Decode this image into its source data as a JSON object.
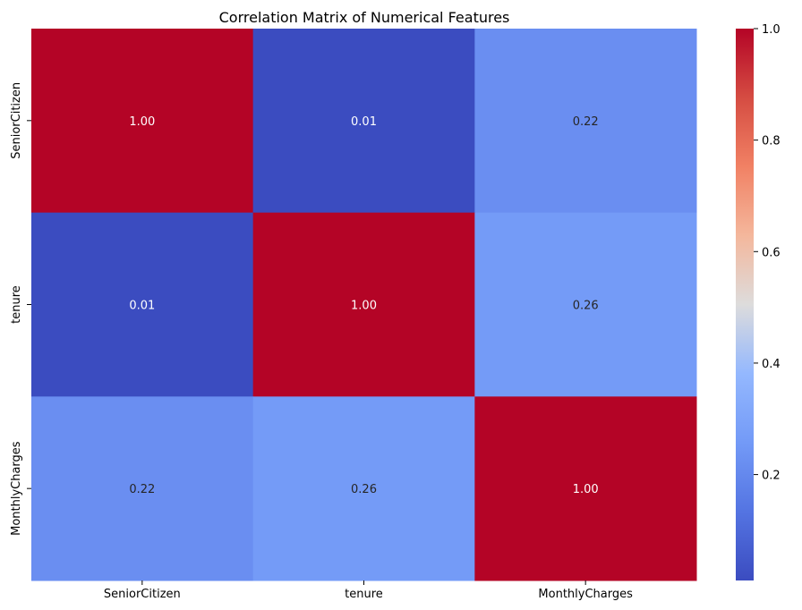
{
  "chart_data": {
    "type": "heatmap",
    "title": "Correlation Matrix of Numerical Features",
    "x_labels": [
      "SeniorCitizen",
      "tenure",
      "MonthlyCharges"
    ],
    "y_labels": [
      "SeniorCitizen",
      "tenure",
      "MonthlyCharges"
    ],
    "values": [
      [
        1.0,
        0.01,
        0.22
      ],
      [
        0.01,
        1.0,
        0.26
      ],
      [
        0.22,
        0.26,
        1.0
      ]
    ],
    "annotations": [
      [
        "1.00",
        "0.01",
        "0.22"
      ],
      [
        "0.01",
        "1.00",
        "0.26"
      ],
      [
        "0.22",
        "0.26",
        "1.00"
      ]
    ],
    "colormap": "coolwarm",
    "colorbar": {
      "range": [
        0.01,
        1.0
      ],
      "ticks": [
        0.2,
        0.4,
        0.6,
        0.8,
        1.0
      ],
      "tick_labels": [
        "0.2",
        "0.4",
        "0.6",
        "0.8",
        "1.0"
      ]
    },
    "xlabel": "",
    "ylabel": ""
  }
}
